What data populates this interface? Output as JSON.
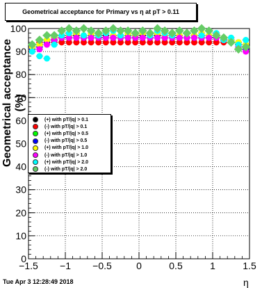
{
  "title": "Geometrical acceptance for Primary vs    η at pT > 0.11",
  "timestamp": "Tue Apr  3 12:28:49 2018",
  "chart_data": {
    "type": "scatter",
    "xlabel": "η",
    "ylabel": "Geometrical acceptance (%)",
    "xlim": [
      -1.5,
      1.5
    ],
    "ylim": [
      0,
      100
    ],
    "grid": true,
    "legend_placement": "center-left",
    "x_ticks": [
      "−1.5",
      "−1",
      "−0.5",
      "0",
      "0.5",
      "1",
      "1.5"
    ],
    "y_ticks": [
      "0",
      "10",
      "20",
      "30",
      "40",
      "50",
      "60",
      "70",
      "80",
      "90",
      "100"
    ],
    "x": [
      -1.45,
      -1.35,
      -1.25,
      -1.15,
      -1.05,
      -0.95,
      -0.85,
      -0.75,
      -0.65,
      -0.55,
      -0.45,
      -0.35,
      -0.25,
      -0.15,
      -0.05,
      0.05,
      0.15,
      0.25,
      0.35,
      0.45,
      0.55,
      0.65,
      0.75,
      0.85,
      0.95,
      1.05,
      1.15,
      1.25,
      1.35,
      1.45
    ],
    "series": [
      {
        "name": "(+) with pT/|q| > 0.1",
        "color": "#000000",
        "values": [
          92,
          93,
          94,
          95,
          96,
          96,
          97,
          96,
          96,
          96,
          97,
          96,
          96,
          96,
          96,
          97,
          96,
          97,
          96,
          97,
          96,
          96,
          97,
          96,
          96,
          96,
          95,
          94,
          93,
          92
        ]
      },
      {
        "name": "(-) with pT/|q| > 0.1",
        "color": "#ff0000",
        "values": [
          93,
          94,
          94,
          94,
          94,
          94,
          94,
          94,
          94,
          94,
          94,
          94,
          94,
          94,
          94,
          94,
          94,
          94,
          94,
          94,
          94,
          94,
          94,
          94,
          94,
          94,
          94,
          94,
          93,
          91
        ]
      },
      {
        "name": "(+) with pT/|q| > 0.5",
        "color": "#00ff00",
        "values": [
          92,
          93,
          95,
          96,
          97,
          97,
          98,
          97,
          97,
          97,
          98,
          97,
          97,
          97,
          97,
          98,
          97,
          98,
          97,
          97,
          97,
          98,
          97,
          97,
          97,
          97,
          96,
          95,
          94,
          93
        ]
      },
      {
        "name": "(-) with pT/|q| > 0.5",
        "color": "#0000ff",
        "values": [
          91,
          92,
          94,
          95,
          96,
          96,
          96,
          96,
          96,
          96,
          96,
          96,
          96,
          96,
          96,
          96,
          96,
          96,
          96,
          96,
          96,
          96,
          96,
          96,
          96,
          96,
          95,
          94,
          93,
          91
        ]
      },
      {
        "name": "(+) with pT/|q| > 1.0",
        "color": "#ffff00",
        "values": [
          92,
          93,
          95,
          96,
          97,
          97,
          98,
          97,
          98,
          97,
          98,
          97,
          97,
          98,
          97,
          98,
          97,
          98,
          97,
          98,
          97,
          98,
          97,
          98,
          97,
          97,
          96,
          95,
          94,
          93
        ]
      },
      {
        "name": "(-) with pT/|q| > 1.0",
        "color": "#ff00ff",
        "values": [
          90,
          91,
          93,
          95,
          96,
          96,
          96,
          96,
          96,
          96,
          96,
          96,
          96,
          96,
          96,
          96,
          96,
          96,
          96,
          96,
          96,
          96,
          96,
          96,
          96,
          96,
          95,
          94,
          92,
          90
        ]
      },
      {
        "name": "(+) with pT/|q| > 2.0",
        "color": "#00ffff",
        "values": [
          90,
          88,
          87,
          93,
          97,
          98,
          99,
          97,
          99,
          97,
          98,
          99,
          97,
          99,
          98,
          99,
          97,
          99,
          98,
          97,
          99,
          98,
          99,
          97,
          99,
          98,
          95,
          96,
          93,
          95
        ]
      },
      {
        "name": "(-) with pT/|q| > 2.0",
        "color": "#66cc66",
        "values": [
          93,
          95,
          97,
          97,
          99,
          100,
          99,
          100,
          99,
          98,
          99,
          100,
          99,
          99,
          98,
          99,
          98,
          100,
          99,
          98,
          99,
          98,
          99,
          100,
          99,
          97,
          96,
          94,
          91,
          92
        ]
      }
    ]
  }
}
